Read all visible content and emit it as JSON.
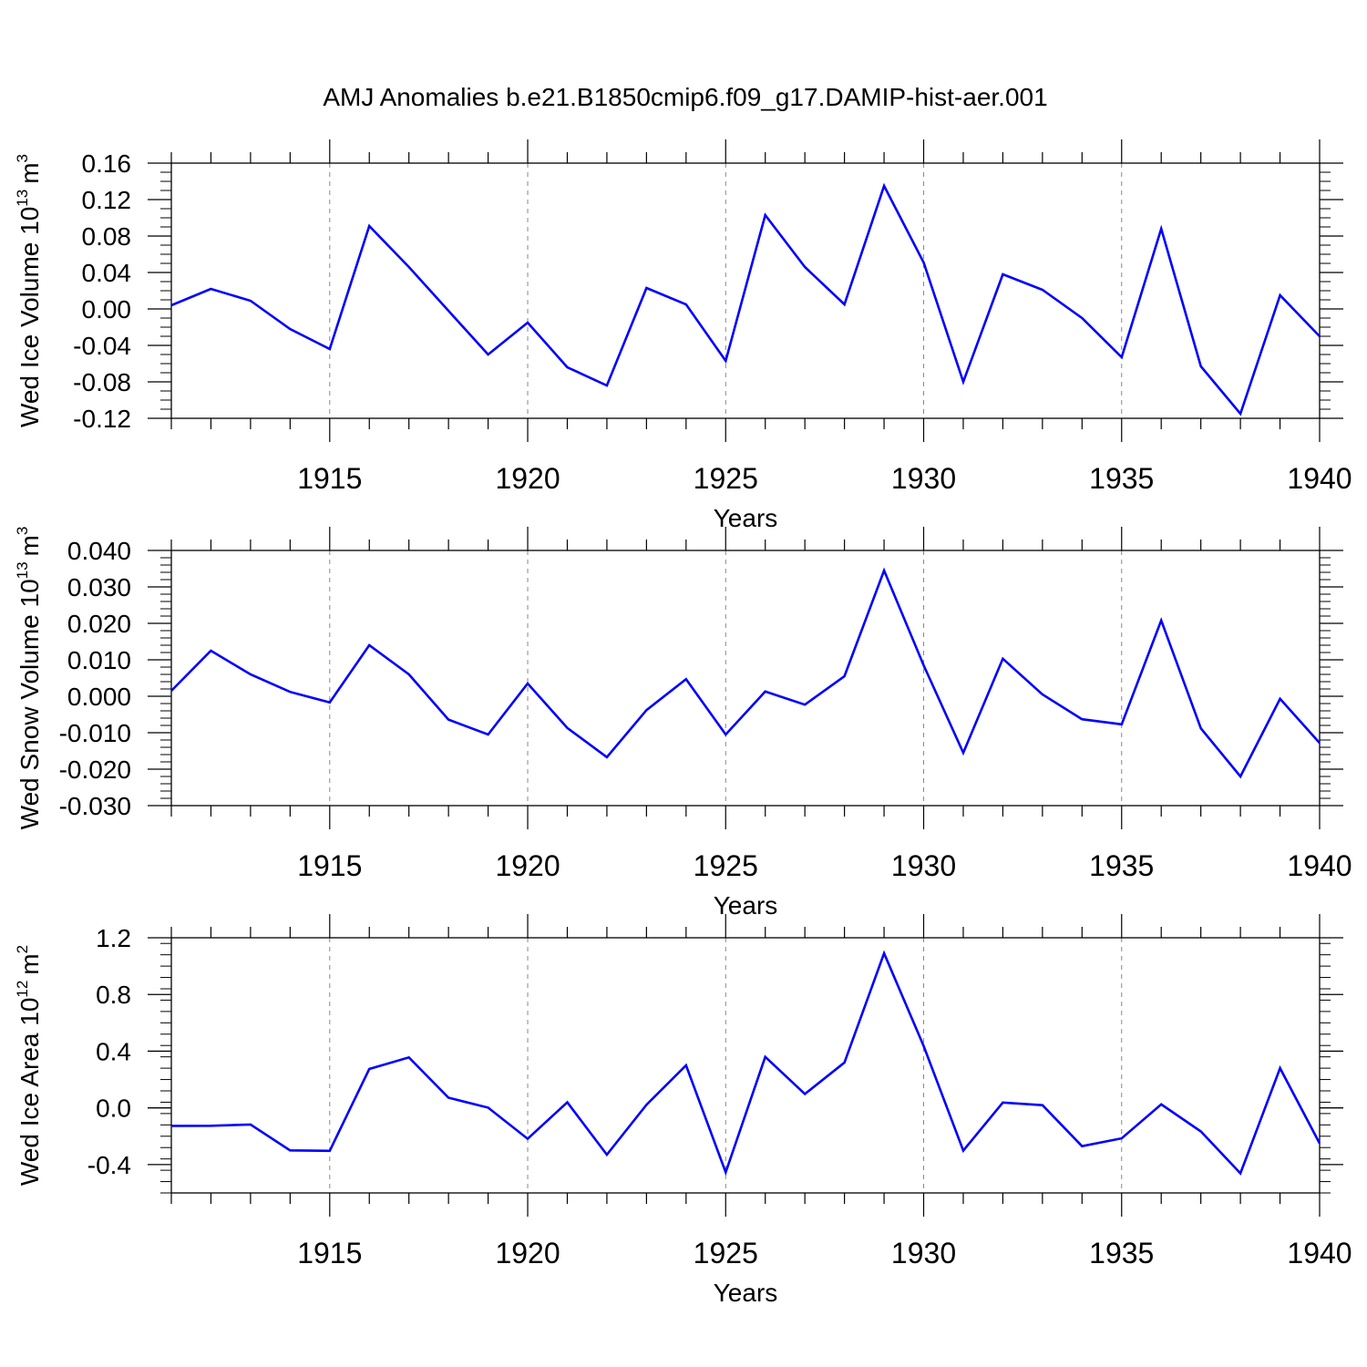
{
  "title": "AMJ Anomalies b.e21.B1850cmip6.f09_g17.DAMIP-hist-aer.001",
  "colors": {
    "series": "#0000ff",
    "axis": "#000000",
    "grid": "#888888"
  },
  "chart_data": [
    {
      "type": "line",
      "ylabel_main": "Wed Ice Volume 10",
      "ylabel_exp": "13",
      "ylabel_unit": "m",
      "ylabel_unit_exp": "3",
      "xlabel": "Years",
      "xlim": [
        1911,
        1940
      ],
      "ylim": [
        -0.12,
        0.16
      ],
      "yticks": [
        -0.12,
        -0.08,
        -0.04,
        0.0,
        0.04,
        0.08,
        0.12,
        0.16
      ],
      "ytick_labels": [
        "-0.12",
        "-0.08",
        "-0.04",
        "0.00",
        "0.04",
        "0.08",
        "0.12",
        "0.16"
      ],
      "yminor_step": 0.01,
      "xticks": [
        1915,
        1920,
        1925,
        1930,
        1935,
        1940
      ],
      "xtick_labels": [
        "1915",
        "1920",
        "1925",
        "1930",
        "1935",
        "1940"
      ],
      "x": [
        1911,
        1912,
        1913,
        1914,
        1915,
        1916,
        1917,
        1918,
        1919,
        1920,
        1921,
        1922,
        1923,
        1924,
        1925,
        1926,
        1927,
        1928,
        1929,
        1930,
        1931,
        1932,
        1933,
        1934,
        1935,
        1936,
        1937,
        1938,
        1939,
        1940
      ],
      "values": [
        0.004,
        0.022,
        0.009,
        -0.022,
        -0.044,
        0.091,
        0.046,
        -0.002,
        -0.05,
        -0.015,
        -0.064,
        -0.084,
        0.023,
        0.005,
        -0.057,
        0.103,
        0.046,
        0.005,
        0.135,
        0.051,
        -0.08,
        0.038,
        0.021,
        -0.01,
        -0.053,
        0.088,
        -0.063,
        -0.115,
        0.015,
        -0.03
      ]
    },
    {
      "type": "line",
      "ylabel_main": "Wed Snow Volume 10",
      "ylabel_exp": "13",
      "ylabel_unit": "m",
      "ylabel_unit_exp": "3",
      "xlabel": "Years",
      "xlim": [
        1911,
        1940
      ],
      "ylim": [
        -0.03,
        0.04
      ],
      "yticks": [
        -0.03,
        -0.02,
        -0.01,
        0.0,
        0.01,
        0.02,
        0.03,
        0.04
      ],
      "ytick_labels": [
        "-0.030",
        "-0.020",
        "-0.010",
        "0.000",
        "0.010",
        "0.020",
        "0.030",
        "0.040"
      ],
      "yminor_step": 0.002,
      "xticks": [
        1915,
        1920,
        1925,
        1930,
        1935,
        1940
      ],
      "xtick_labels": [
        "1915",
        "1920",
        "1925",
        "1930",
        "1935",
        "1940"
      ],
      "x": [
        1911,
        1912,
        1913,
        1914,
        1915,
        1916,
        1917,
        1918,
        1919,
        1920,
        1921,
        1922,
        1923,
        1924,
        1925,
        1926,
        1927,
        1928,
        1929,
        1930,
        1931,
        1932,
        1933,
        1934,
        1935,
        1936,
        1937,
        1938,
        1939,
        1940
      ],
      "values": [
        0.0015,
        0.0125,
        0.006,
        0.0012,
        -0.0017,
        0.014,
        0.006,
        -0.0064,
        -0.0105,
        0.0035,
        -0.0087,
        -0.0167,
        -0.0038,
        0.0047,
        -0.0105,
        0.0013,
        -0.0023,
        0.0055,
        0.0345,
        0.0085,
        -0.0155,
        0.0103,
        0.0005,
        -0.0063,
        -0.0077,
        0.0208,
        -0.0088,
        -0.022,
        -0.0007,
        -0.0128
      ]
    },
    {
      "type": "line",
      "ylabel_main": "Wed Ice Area 10",
      "ylabel_exp": "12",
      "ylabel_unit": "m",
      "ylabel_unit_exp": "2",
      "xlabel": "Years",
      "xlim": [
        1911,
        1940
      ],
      "ylim": [
        -0.6,
        1.2
      ],
      "yticks": [
        -0.4,
        0.0,
        0.4,
        0.8,
        1.2
      ],
      "ytick_labels": [
        "-0.4",
        "0.0",
        "0.4",
        "0.8",
        "1.2"
      ],
      "yminor_step": 0.08,
      "xticks": [
        1915,
        1920,
        1925,
        1930,
        1935,
        1940
      ],
      "xtick_labels": [
        "1915",
        "1920",
        "1925",
        "1930",
        "1935",
        "1940"
      ],
      "x": [
        1911,
        1912,
        1913,
        1914,
        1915,
        1916,
        1917,
        1918,
        1919,
        1920,
        1921,
        1922,
        1923,
        1924,
        1925,
        1926,
        1927,
        1928,
        1929,
        1930,
        1931,
        1932,
        1933,
        1934,
        1935,
        1936,
        1937,
        1938,
        1939,
        1940
      ],
      "values": [
        -0.127,
        -0.126,
        -0.117,
        -0.3,
        -0.303,
        0.274,
        0.356,
        0.072,
        0.002,
        -0.218,
        0.039,
        -0.33,
        0.022,
        0.3,
        -0.455,
        0.36,
        0.098,
        0.32,
        1.09,
        0.437,
        -0.302,
        0.038,
        0.019,
        -0.27,
        -0.215,
        0.025,
        -0.166,
        -0.462,
        0.28,
        -0.25
      ]
    }
  ]
}
